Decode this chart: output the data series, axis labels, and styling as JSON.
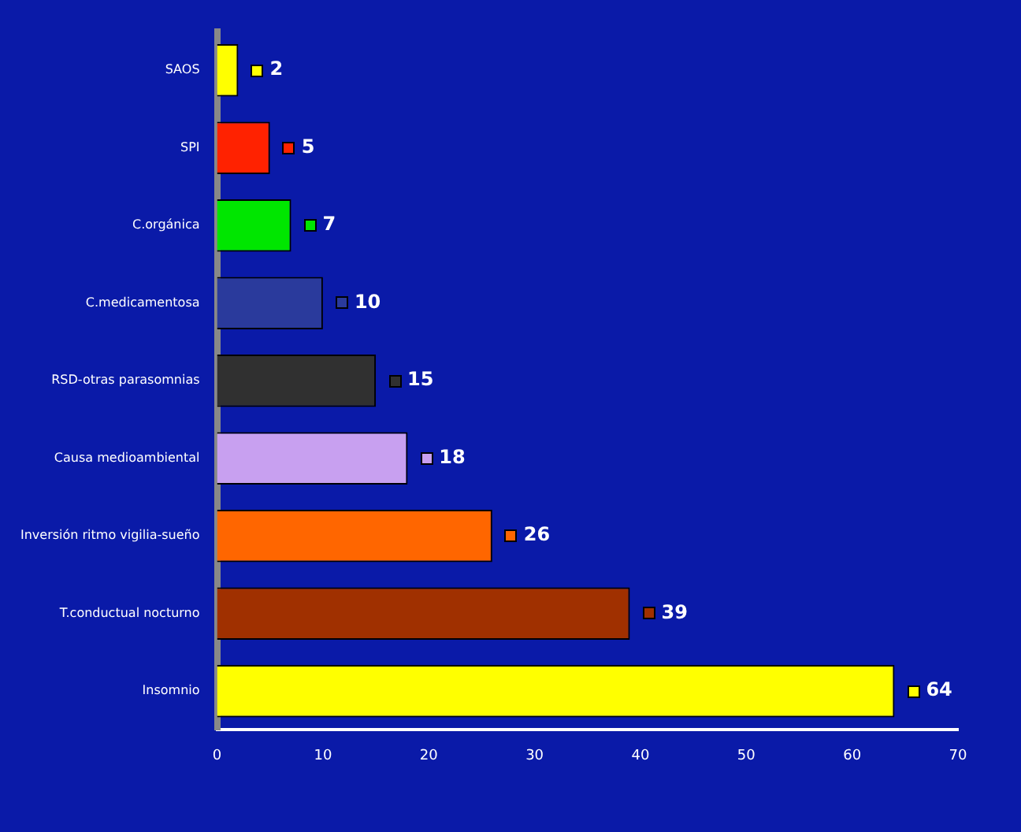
{
  "chart_data": {
    "type": "bar",
    "orientation": "horizontal",
    "categories": [
      "SAOS",
      "SPI",
      "C.orgánica",
      "C.medicamentosa",
      "RSD-otras parasomnias",
      "Causa medioambiental",
      "Inversión ritmo vigilia-sueño",
      "T.conductual nocturno",
      "Insomnio"
    ],
    "values": [
      2,
      5,
      7,
      10,
      15,
      18,
      26,
      39,
      64
    ],
    "colors": [
      "#ffff00",
      "#ff2200",
      "#00e600",
      "#2a3a9c",
      "#303030",
      "#c8a0f0",
      "#ff6600",
      "#a03000",
      "#ffff00"
    ],
    "xlim": [
      0,
      70
    ],
    "xticks": [
      0,
      10,
      20,
      30,
      40,
      50,
      60,
      70
    ],
    "grid": false,
    "legend": false,
    "data_labels": true
  }
}
